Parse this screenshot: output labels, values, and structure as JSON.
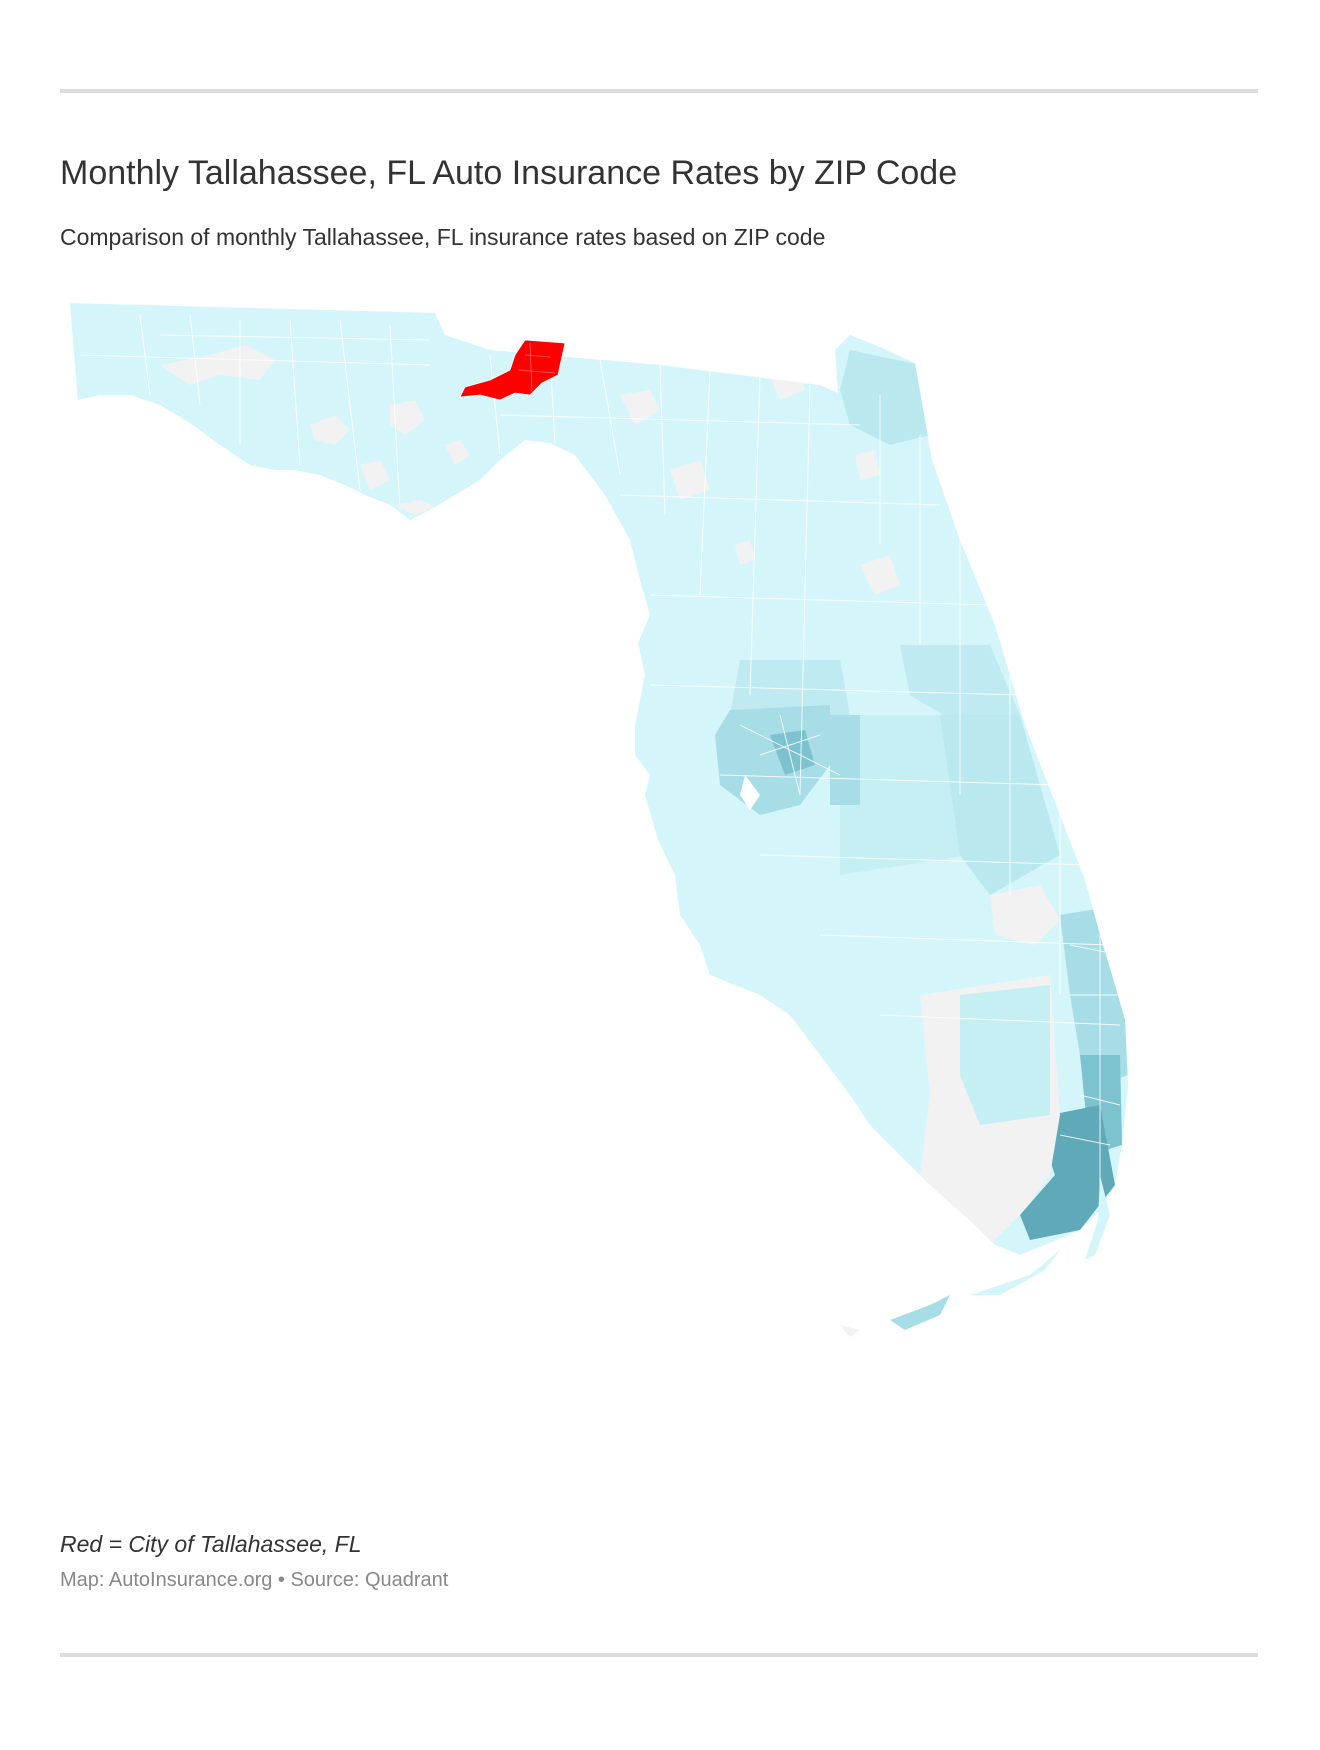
{
  "header": {
    "title": "Monthly Tallahassee, FL Auto Insurance Rates by ZIP Code",
    "subtitle": "Comparison of monthly Tallahassee, FL insurance rates based on ZIP code"
  },
  "map": {
    "state": "Florida",
    "colors": {
      "highlight": "#ff0000",
      "rate_low": "#d4f6fa",
      "rate_mid_low": "#c6eff4",
      "rate_mid": "#a7dde6",
      "rate_high": "#7dc3cf",
      "rate_highest": "#5fa9b8",
      "no_data": "#f2f2f2",
      "boundary": "#ffffff"
    },
    "highlighted_region": "City of Tallahassee, FL"
  },
  "footer": {
    "legend_note": "Red = City of Tallahassee, FL",
    "credit": "Map: AutoInsurance.org • Source: Quadrant"
  }
}
